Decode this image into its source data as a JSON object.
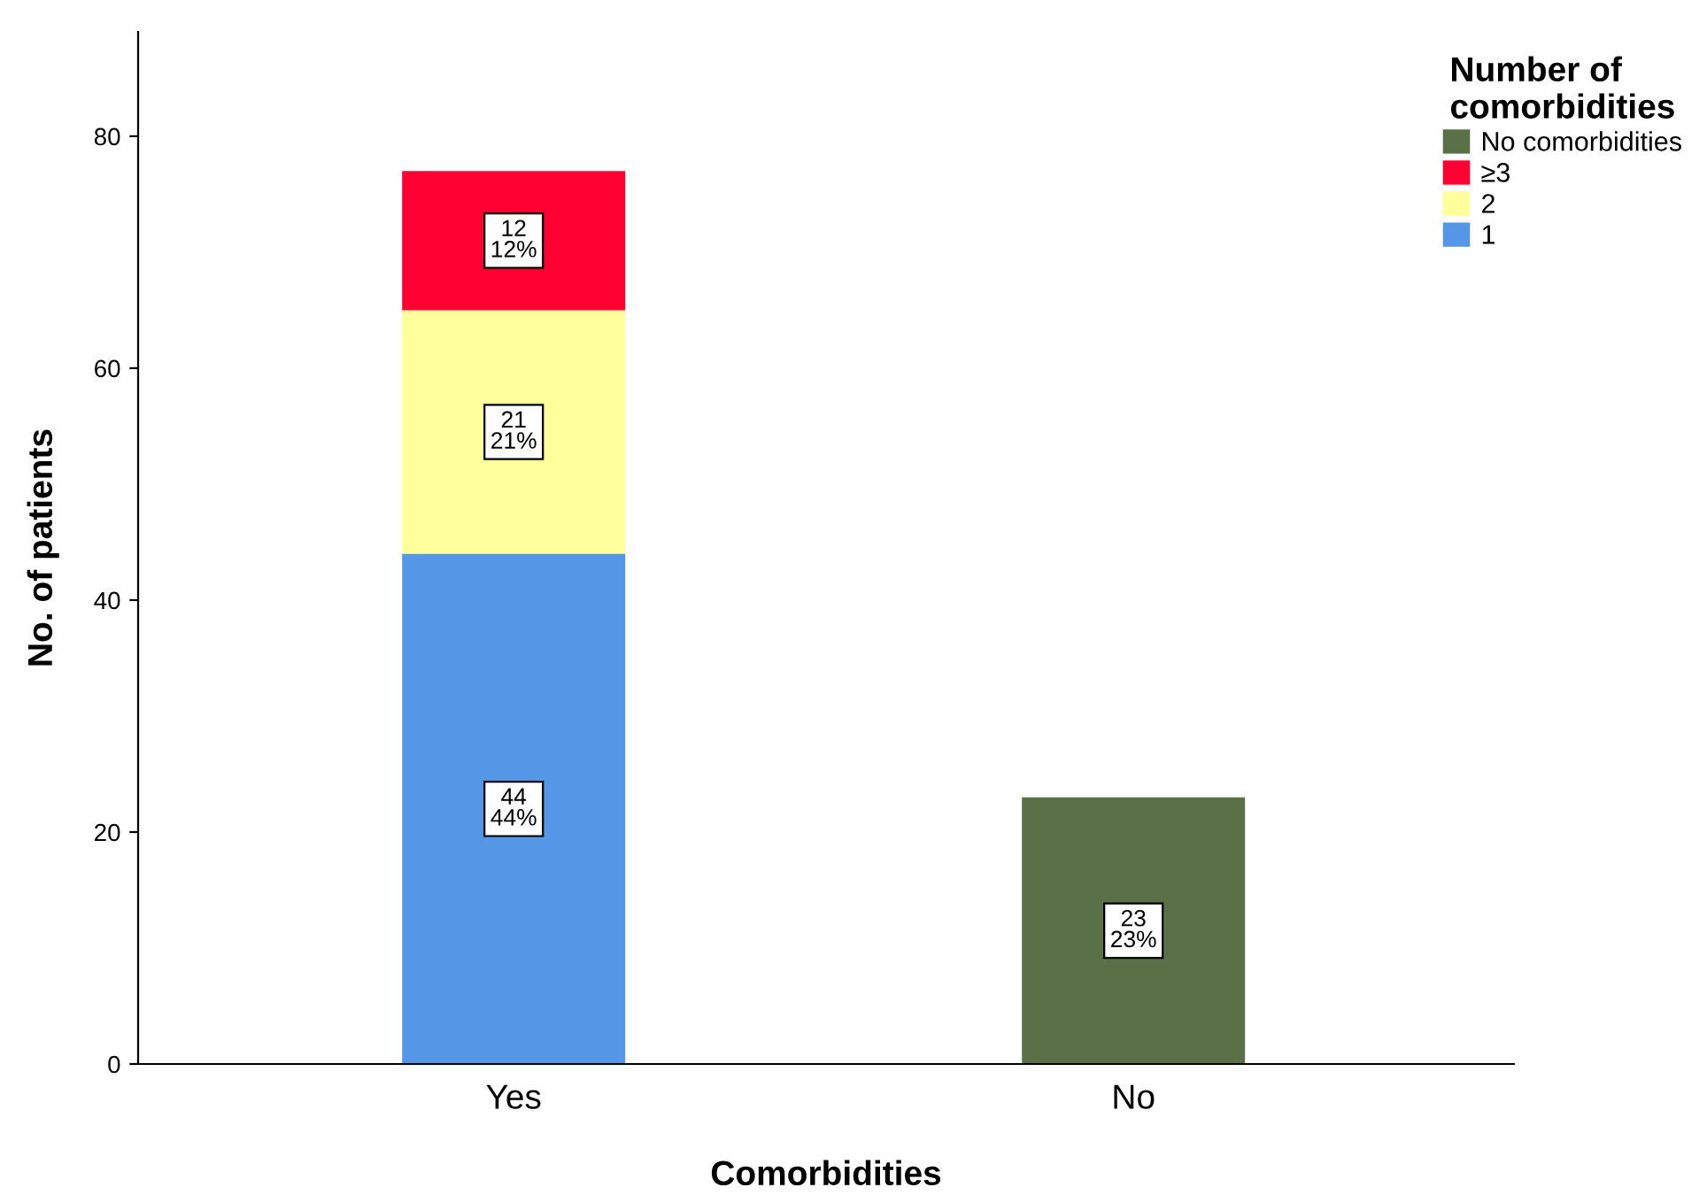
{
  "chart_data": {
    "type": "bar",
    "stacked": true,
    "xlabel": "Comorbidities",
    "ylabel": "No. of patients",
    "legend_title": "Number of\ncomorbidities",
    "categories": [
      "Yes",
      "No"
    ],
    "series": [
      {
        "name": "1",
        "color": "#5596e6",
        "values": [
          44,
          null
        ],
        "value_labels": [
          "44\n44%",
          null
        ]
      },
      {
        "name": "2",
        "color": "#ffff9c",
        "values": [
          21,
          null
        ],
        "value_labels": [
          "21\n21%",
          null
        ]
      },
      {
        "name": "≥3",
        "color": "#ff0033",
        "values": [
          12,
          null
        ],
        "value_labels": [
          "12\n12%",
          null
        ]
      },
      {
        "name": "No comorbidities",
        "color": "#5a7147",
        "values": [
          null,
          23
        ],
        "value_labels": [
          null,
          "23\n23%"
        ]
      }
    ],
    "ylim": [
      0,
      89
    ],
    "yticks": [
      0,
      20,
      40,
      60,
      80
    ],
    "grid": false,
    "legend": "top right"
  }
}
